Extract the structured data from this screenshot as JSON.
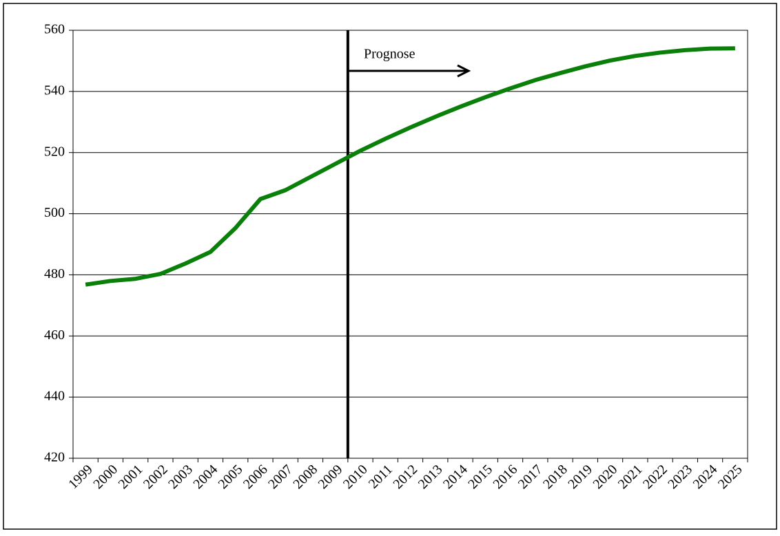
{
  "chart_data": {
    "type": "line",
    "annotation": "Prognose",
    "categories": [
      "1999",
      "2000",
      "2001",
      "2002",
      "2003",
      "2004",
      "2005",
      "2006",
      "2007",
      "2008",
      "2009",
      "2010",
      "2011",
      "2012",
      "2013",
      "2014",
      "2015",
      "2016",
      "2017",
      "2018",
      "2019",
      "2020",
      "2021",
      "2022",
      "2023",
      "2024",
      "2025"
    ],
    "series": [
      {
        "color": "#0a800a",
        "values": [
          476.8,
          478,
          478.7,
          480.3,
          483.7,
          487.5,
          495.3,
          504.8,
          507.7,
          512,
          516.3,
          520.6,
          524.5,
          528.2,
          531.7,
          535,
          538.1,
          541,
          543.7,
          546,
          548.2,
          550.1,
          551.6,
          552.7,
          553.5,
          554,
          554.1
        ]
      }
    ],
    "ylim": [
      420,
      560
    ],
    "yticks": [
      420,
      440,
      460,
      480,
      500,
      520,
      540,
      560
    ],
    "grid": true
  }
}
